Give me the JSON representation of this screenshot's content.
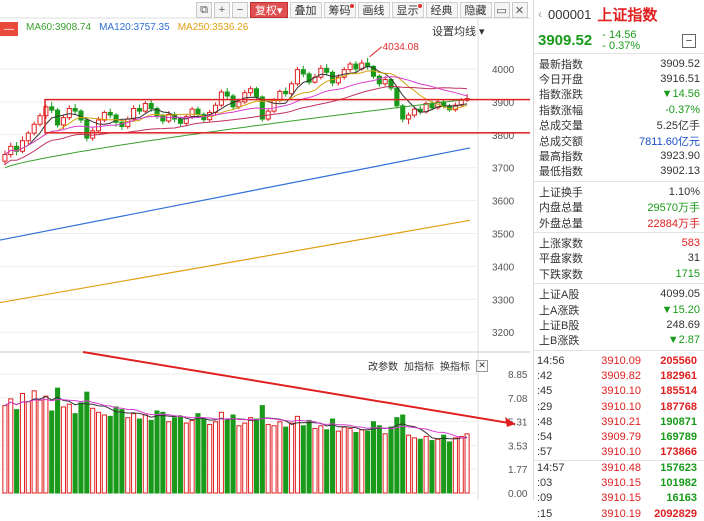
{
  "toolbar": {
    "icons": [
      "copy-icon",
      "plus-icon",
      "minus-icon"
    ],
    "buttons": [
      {
        "label": "复权",
        "active": true,
        "dot": false
      },
      {
        "label": "叠加",
        "active": false,
        "dot": false
      },
      {
        "label": "筹码",
        "active": false,
        "dot": true
      },
      {
        "label": "画线",
        "active": false,
        "dot": false
      },
      {
        "label": "显示",
        "active": false,
        "dot": true
      },
      {
        "label": "经典",
        "active": false,
        "dot": false
      },
      {
        "label": "隐藏",
        "active": false,
        "dot": false
      }
    ]
  },
  "ma_legend": {
    "box_label": "—",
    "items": [
      {
        "label": "MA60:3908.74",
        "color": "#3aa02e"
      },
      {
        "label": "MA120:3757.35",
        "color": "#2f6fd8"
      },
      {
        "label": "MA250:3536.26",
        "color": "#e2a013"
      }
    ]
  },
  "settings_label": "设置均线",
  "volume_links": [
    "改参数",
    "加指标",
    "换指标"
  ],
  "chart_data": {
    "type": "candlestick",
    "price_axis": {
      "ticks": [
        4000,
        3900,
        3800,
        3700,
        3600,
        3500,
        3400,
        3300,
        3200
      ]
    },
    "peak_annotation": "4034.08",
    "volume_axis": {
      "ticks": [
        "8.85",
        "7.08",
        "5.31",
        "3.53",
        "1.77",
        "0.00"
      ]
    },
    "ma120": {
      "start": 3480,
      "end": 3760
    },
    "ma250": {
      "start": 3290,
      "end": 3540
    },
    "candles": [
      {
        "o": 3720,
        "c": 3740,
        "h": 3752,
        "l": 3708,
        "v": 6.5
      },
      {
        "o": 3740,
        "c": 3765,
        "h": 3776,
        "l": 3730,
        "v": 7.0
      },
      {
        "o": 3765,
        "c": 3750,
        "h": 3778,
        "l": 3738,
        "v": 6.2
      },
      {
        "o": 3750,
        "c": 3782,
        "h": 3795,
        "l": 3744,
        "v": 7.4
      },
      {
        "o": 3782,
        "c": 3805,
        "h": 3812,
        "l": 3770,
        "v": 6.8
      },
      {
        "o": 3805,
        "c": 3832,
        "h": 3840,
        "l": 3798,
        "v": 7.6
      },
      {
        "o": 3832,
        "c": 3858,
        "h": 3866,
        "l": 3825,
        "v": 6.9
      },
      {
        "o": 3858,
        "c": 3885,
        "h": 3892,
        "l": 3848,
        "v": 7.2
      },
      {
        "o": 3885,
        "c": 3875,
        "h": 3900,
        "l": 3866,
        "v": 6.1
      },
      {
        "o": 3875,
        "c": 3830,
        "h": 3882,
        "l": 3822,
        "v": 7.8
      },
      {
        "o": 3830,
        "c": 3852,
        "h": 3862,
        "l": 3818,
        "v": 6.4
      },
      {
        "o": 3852,
        "c": 3880,
        "h": 3890,
        "l": 3845,
        "v": 6.6
      },
      {
        "o": 3880,
        "c": 3872,
        "h": 3894,
        "l": 3862,
        "v": 5.9
      },
      {
        "o": 3872,
        "c": 3845,
        "h": 3878,
        "l": 3836,
        "v": 6.7
      },
      {
        "o": 3845,
        "c": 3790,
        "h": 3850,
        "l": 3780,
        "v": 7.5
      },
      {
        "o": 3790,
        "c": 3812,
        "h": 3822,
        "l": 3782,
        "v": 6.3
      },
      {
        "o": 3812,
        "c": 3845,
        "h": 3855,
        "l": 3805,
        "v": 6.0
      },
      {
        "o": 3845,
        "c": 3868,
        "h": 3874,
        "l": 3838,
        "v": 5.8
      },
      {
        "o": 3868,
        "c": 3860,
        "h": 3880,
        "l": 3850,
        "v": 5.7
      },
      {
        "o": 3860,
        "c": 3838,
        "h": 3866,
        "l": 3825,
        "v": 6.4
      },
      {
        "o": 3838,
        "c": 3825,
        "h": 3846,
        "l": 3815,
        "v": 6.2
      },
      {
        "o": 3825,
        "c": 3848,
        "h": 3856,
        "l": 3818,
        "v": 5.6
      },
      {
        "o": 3848,
        "c": 3880,
        "h": 3890,
        "l": 3842,
        "v": 5.9
      },
      {
        "o": 3880,
        "c": 3872,
        "h": 3892,
        "l": 3862,
        "v": 5.5
      },
      {
        "o": 3872,
        "c": 3895,
        "h": 3902,
        "l": 3866,
        "v": 5.8
      },
      {
        "o": 3895,
        "c": 3880,
        "h": 3906,
        "l": 3870,
        "v": 5.4
      },
      {
        "o": 3880,
        "c": 3858,
        "h": 3886,
        "l": 3848,
        "v": 6.1
      },
      {
        "o": 3858,
        "c": 3842,
        "h": 3864,
        "l": 3832,
        "v": 6.0
      },
      {
        "o": 3842,
        "c": 3862,
        "h": 3872,
        "l": 3835,
        "v": 5.3
      },
      {
        "o": 3862,
        "c": 3848,
        "h": 3870,
        "l": 3838,
        "v": 5.6
      },
      {
        "o": 3848,
        "c": 3835,
        "h": 3855,
        "l": 3826,
        "v": 5.7
      },
      {
        "o": 3835,
        "c": 3855,
        "h": 3862,
        "l": 3828,
        "v": 5.2
      },
      {
        "o": 3855,
        "c": 3878,
        "h": 3885,
        "l": 3848,
        "v": 5.4
      },
      {
        "o": 3878,
        "c": 3862,
        "h": 3886,
        "l": 3852,
        "v": 5.9
      },
      {
        "o": 3862,
        "c": 3846,
        "h": 3868,
        "l": 3838,
        "v": 5.5
      },
      {
        "o": 3846,
        "c": 3868,
        "h": 3876,
        "l": 3840,
        "v": 5.1
      },
      {
        "o": 3868,
        "c": 3890,
        "h": 3898,
        "l": 3860,
        "v": 5.3
      },
      {
        "o": 3890,
        "c": 3930,
        "h": 3938,
        "l": 3884,
        "v": 6.0
      },
      {
        "o": 3930,
        "c": 3918,
        "h": 3942,
        "l": 3906,
        "v": 5.4
      },
      {
        "o": 3918,
        "c": 3885,
        "h": 3924,
        "l": 3876,
        "v": 5.8
      },
      {
        "o": 3885,
        "c": 3900,
        "h": 3910,
        "l": 3878,
        "v": 5.0
      },
      {
        "o": 3900,
        "c": 3928,
        "h": 3936,
        "l": 3894,
        "v": 5.2
      },
      {
        "o": 3928,
        "c": 3940,
        "h": 3948,
        "l": 3918,
        "v": 5.6
      },
      {
        "o": 3940,
        "c": 3915,
        "h": 3946,
        "l": 3906,
        "v": 5.5
      },
      {
        "o": 3915,
        "c": 3848,
        "h": 3920,
        "l": 3840,
        "v": 6.5
      },
      {
        "o": 3848,
        "c": 3872,
        "h": 3880,
        "l": 3842,
        "v": 5.1
      },
      {
        "o": 3872,
        "c": 3905,
        "h": 3912,
        "l": 3866,
        "v": 5.0
      },
      {
        "o": 3905,
        "c": 3932,
        "h": 3938,
        "l": 3898,
        "v": 5.3
      },
      {
        "o": 3932,
        "c": 3925,
        "h": 3944,
        "l": 3916,
        "v": 4.9
      },
      {
        "o": 3925,
        "c": 3955,
        "h": 3962,
        "l": 3918,
        "v": 5.2
      },
      {
        "o": 3955,
        "c": 3998,
        "h": 4006,
        "l": 3948,
        "v": 5.7
      },
      {
        "o": 3998,
        "c": 3985,
        "h": 4010,
        "l": 3975,
        "v": 5.0
      },
      {
        "o": 3985,
        "c": 3960,
        "h": 3992,
        "l": 3952,
        "v": 5.4
      },
      {
        "o": 3960,
        "c": 3975,
        "h": 3985,
        "l": 3955,
        "v": 4.8
      },
      {
        "o": 3975,
        "c": 4002,
        "h": 4012,
        "l": 3968,
        "v": 5.0
      },
      {
        "o": 4002,
        "c": 3990,
        "h": 4015,
        "l": 3980,
        "v": 4.7
      },
      {
        "o": 3990,
        "c": 3958,
        "h": 3996,
        "l": 3948,
        "v": 5.5
      },
      {
        "o": 3958,
        "c": 3975,
        "h": 3984,
        "l": 3950,
        "v": 4.6
      },
      {
        "o": 3975,
        "c": 3998,
        "h": 4006,
        "l": 3968,
        "v": 4.9
      },
      {
        "o": 3998,
        "c": 4015,
        "h": 4022,
        "l": 3990,
        "v": 4.8
      },
      {
        "o": 4015,
        "c": 4000,
        "h": 4024,
        "l": 3990,
        "v": 4.5
      },
      {
        "o": 4000,
        "c": 4018,
        "h": 4028,
        "l": 3994,
        "v": 4.7
      },
      {
        "o": 4018,
        "c": 4008,
        "h": 4034,
        "l": 3998,
        "v": 4.6
      },
      {
        "o": 4008,
        "c": 3978,
        "h": 4012,
        "l": 3970,
        "v": 5.3
      },
      {
        "o": 3978,
        "c": 3955,
        "h": 3984,
        "l": 3946,
        "v": 5.0
      },
      {
        "o": 3955,
        "c": 3968,
        "h": 3978,
        "l": 3948,
        "v": 4.4
      },
      {
        "o": 3968,
        "c": 3942,
        "h": 3972,
        "l": 3934,
        "v": 4.9
      },
      {
        "o": 3942,
        "c": 3888,
        "h": 3946,
        "l": 3880,
        "v": 5.6
      },
      {
        "o": 3888,
        "c": 3848,
        "h": 3894,
        "l": 3838,
        "v": 5.8
      },
      {
        "o": 3848,
        "c": 3860,
        "h": 3868,
        "l": 3832,
        "v": 4.3
      },
      {
        "o": 3860,
        "c": 3878,
        "h": 3886,
        "l": 3852,
        "v": 4.1
      },
      {
        "o": 3878,
        "c": 3870,
        "h": 3888,
        "l": 3862,
        "v": 4.0
      },
      {
        "o": 3870,
        "c": 3895,
        "h": 3902,
        "l": 3864,
        "v": 4.2
      },
      {
        "o": 3895,
        "c": 3882,
        "h": 3904,
        "l": 3874,
        "v": 3.9
      },
      {
        "o": 3882,
        "c": 3900,
        "h": 3906,
        "l": 3876,
        "v": 4.0
      },
      {
        "o": 3900,
        "c": 3888,
        "h": 3908,
        "l": 3880,
        "v": 4.3
      },
      {
        "o": 3888,
        "c": 3876,
        "h": 3894,
        "l": 3870,
        "v": 3.8
      },
      {
        "o": 3876,
        "c": 3890,
        "h": 3898,
        "l": 3870,
        "v": 4.1
      },
      {
        "o": 3890,
        "c": 3905,
        "h": 3912,
        "l": 3884,
        "v": 4.2
      },
      {
        "o": 3905,
        "c": 3910,
        "h": 3924,
        "l": 3900,
        "v": 4.4
      }
    ]
  },
  "stock": {
    "code": "000001",
    "name": "上证指数",
    "price": "3909.52",
    "change": "- 14.56",
    "change_pct": "- 0.37%",
    "minus_button": "−"
  },
  "stats": [
    {
      "label": "最新指数",
      "value": "3909.52",
      "cls": ""
    },
    {
      "label": "今日开盘",
      "value": "3916.51",
      "cls": ""
    },
    {
      "label": "指数涨跌",
      "value": "▼14.56",
      "cls": "down"
    },
    {
      "label": "指数涨幅",
      "value": "-0.37%",
      "cls": "down"
    },
    {
      "label": "总成交量",
      "value": "5.25亿手",
      "cls": ""
    },
    {
      "label": "总成交额",
      "value": "7811.60亿元",
      "cls": "blue"
    },
    {
      "label": "最高指数",
      "value": "3923.90",
      "cls": ""
    },
    {
      "label": "最低指数",
      "value": "3902.13",
      "cls": ""
    }
  ],
  "stats2": [
    {
      "label": "上证换手",
      "value": "1.10%",
      "cls": ""
    },
    {
      "label": "内盘总量",
      "value": "29570万手",
      "cls": "down"
    },
    {
      "label": "外盘总量",
      "value": "22884万手",
      "cls": "up"
    }
  ],
  "stats3": [
    {
      "label": "上涨家数",
      "value": "583",
      "cls": "up"
    },
    {
      "label": "平盘家数",
      "value": "31",
      "cls": ""
    },
    {
      "label": "下跌家数",
      "value": "1715",
      "cls": "down"
    }
  ],
  "stats4": [
    {
      "label": "上证A股",
      "value": "4099.05",
      "cls": ""
    },
    {
      "label": "上A涨跌",
      "value": "▼15.20",
      "cls": "down"
    },
    {
      "label": "上证B股",
      "value": "248.69",
      "cls": ""
    },
    {
      "label": "上B涨跌",
      "value": "▼2.87",
      "cls": "down"
    }
  ],
  "ticks": [
    {
      "time": "14:56",
      "price": "3910.09",
      "vol": "205560",
      "vcls": "up"
    },
    {
      "time": ":42",
      "price": "3909.82",
      "vol": "182961",
      "vcls": "up"
    },
    {
      "time": ":45",
      "price": "3910.10",
      "vol": "185514",
      "vcls": "up"
    },
    {
      "time": ":29",
      "price": "3910.10",
      "vol": "187768",
      "vcls": "up"
    },
    {
      "time": ":48",
      "price": "3910.21",
      "vol": "190871",
      "vcls": "down"
    },
    {
      "time": ":54",
      "price": "3909.79",
      "vol": "169789",
      "vcls": "down"
    },
    {
      "time": ":57",
      "price": "3910.10",
      "vol": "173866",
      "vcls": "up"
    },
    {
      "time": "14:57",
      "price": "3910.48",
      "vol": "157623",
      "vcls": "down"
    },
    {
      "time": ":03",
      "price": "3910.15",
      "vol": "101982",
      "vcls": "down"
    },
    {
      "time": ":09",
      "price": "3910.15",
      "vol": "16163",
      "vcls": "down"
    },
    {
      "time": ":15",
      "price": "3910.19",
      "vol": "2092829",
      "vcls": "up"
    }
  ],
  "colors": {
    "up": "#e02020",
    "down": "#1a9a1a",
    "ma5": "#333333",
    "ma10": "#d4a30c",
    "ma20": "#d83dd0",
    "ma30": "#3aa02e",
    "ma60": "#3aa02e",
    "ma120": "#2f6fd8",
    "ma250": "#e2a013",
    "annotation": "#e03030"
  }
}
